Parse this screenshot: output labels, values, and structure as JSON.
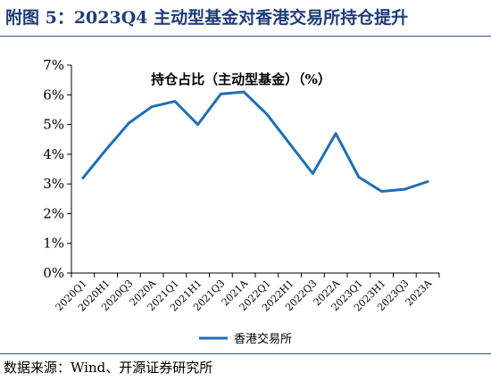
{
  "figure": {
    "title": "附图 5：2023Q4 主动型基金对香港交易所持仓提升",
    "source": "数据来源：Wind、开源证券研究所"
  },
  "colors": {
    "line": "#1f6fb4",
    "title": "#1f3c7a",
    "rule": "#2f4f8f"
  },
  "chart_data": {
    "type": "line",
    "title": "持仓占比（主动型基金）（%）",
    "xlabel": "",
    "ylabel": "",
    "categories": [
      "2020Q1",
      "2020H1",
      "2020Q3",
      "2020A",
      "2021Q1",
      "2021H1",
      "2021Q3",
      "2021A",
      "2022Q1",
      "2022H1",
      "2022Q3",
      "2022A",
      "2023Q1",
      "2023H1",
      "2023Q3",
      "2023A"
    ],
    "series": [
      {
        "name": "香港交易所",
        "values": [
          3.2,
          4.15,
          5.05,
          5.6,
          5.78,
          5.0,
          6.03,
          6.1,
          5.35,
          4.35,
          3.35,
          4.7,
          3.23,
          2.75,
          2.82,
          3.08
        ]
      }
    ],
    "ylim": [
      0,
      7
    ],
    "yticks": [
      "0%",
      "1%",
      "2%",
      "3%",
      "4%",
      "5%",
      "6%",
      "7%"
    ],
    "grid": false,
    "legend_position": "bottom"
  }
}
